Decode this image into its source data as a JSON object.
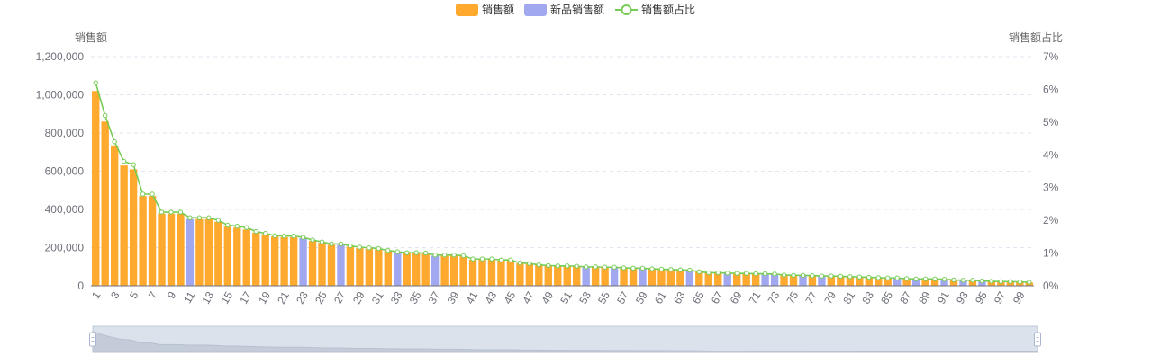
{
  "legend": {
    "items": [
      {
        "label": "销售额",
        "color": "#FFAA2E",
        "kind": "bar"
      },
      {
        "label": "新品销售额",
        "color": "#A2A8F0",
        "kind": "bar"
      },
      {
        "label": "销售额占比",
        "color": "#77CC55",
        "kind": "line"
      }
    ]
  },
  "chart_data": {
    "type": "bar",
    "ylabel_left": "销售额",
    "ylabel_right": "销售额占比",
    "ylim_left": [
      0,
      1200000
    ],
    "ylim_right": [
      0,
      7
    ],
    "left_ticks": [
      "0",
      "200,000",
      "400,000",
      "600,000",
      "800,000",
      "1,000,000",
      "1,200,000"
    ],
    "right_ticks": [
      "0%",
      "1%",
      "2%",
      "3%",
      "4%",
      "5%",
      "6%",
      "7%"
    ],
    "x_tick_labels": [
      "1",
      "3",
      "5",
      "7",
      "9",
      "11",
      "13",
      "15",
      "17",
      "19",
      "21",
      "23",
      "25",
      "27",
      "29",
      "31",
      "33",
      "35",
      "37",
      "39",
      "41",
      "43",
      "45",
      "47",
      "49",
      "51",
      "53",
      "55",
      "57",
      "59",
      "61",
      "63",
      "65",
      "67",
      "69",
      "71",
      "73",
      "75",
      "77",
      "79",
      "81",
      "83",
      "85",
      "87",
      "89",
      "91",
      "93",
      "95",
      "97",
      "99"
    ],
    "categories": [
      "1",
      "2",
      "3",
      "4",
      "5",
      "6",
      "7",
      "8",
      "9",
      "10",
      "11",
      "12",
      "13",
      "14",
      "15",
      "16",
      "17",
      "18",
      "19",
      "20",
      "21",
      "22",
      "23",
      "24",
      "25",
      "26",
      "27",
      "28",
      "29",
      "30",
      "31",
      "32",
      "33",
      "34",
      "35",
      "36",
      "37",
      "38",
      "39",
      "40",
      "41",
      "42",
      "43",
      "44",
      "45",
      "46",
      "47",
      "48",
      "49",
      "50",
      "51",
      "52",
      "53",
      "54",
      "55",
      "56",
      "57",
      "58",
      "59",
      "60",
      "61",
      "62",
      "63",
      "64",
      "65",
      "66",
      "67",
      "68",
      "69",
      "70",
      "71",
      "72",
      "73",
      "74",
      "75",
      "76",
      "77",
      "78",
      "79",
      "80",
      "81",
      "82",
      "83",
      "84",
      "85",
      "86",
      "87",
      "88",
      "89",
      "90",
      "91",
      "92",
      "93",
      "94",
      "95",
      "96",
      "97",
      "98",
      "99",
      "100"
    ],
    "new_product_indices": [
      11,
      23,
      27,
      33,
      37,
      53,
      56,
      59,
      64,
      68,
      72,
      73,
      76,
      78,
      86,
      88,
      91,
      93,
      95
    ],
    "series": [
      {
        "name": "销售额",
        "color": "#FFAA2E",
        "values": [
          1020000,
          860000,
          735000,
          630000,
          610000,
          470000,
          470000,
          378000,
          378000,
          378000,
          350000,
          350000,
          350000,
          335000,
          310000,
          305000,
          295000,
          278000,
          270000,
          258000,
          255000,
          255000,
          250000,
          235000,
          225000,
          215000,
          215000,
          205000,
          198000,
          195000,
          192000,
          182000,
          175000,
          170000,
          170000,
          168000,
          158000,
          158000,
          158000,
          155000,
          138000,
          138000,
          138000,
          132000,
          132000,
          118000,
          115000,
          108000,
          105000,
          102000,
          102000,
          100000,
          98000,
          97000,
          96000,
          95000,
          92000,
          90000,
          90000,
          88000,
          86000,
          84000,
          83000,
          80000,
          73000,
          68000,
          67000,
          65000,
          64000,
          63000,
          62000,
          62000,
          60000,
          55000,
          54000,
          53000,
          52000,
          51000,
          50000,
          48000,
          47000,
          45000,
          43000,
          42000,
          40000,
          40000,
          37000,
          36000,
          35000,
          35000,
          33000,
          30000,
          28000,
          28000,
          25000,
          24000,
          22000,
          21000,
          20000,
          18000
        ]
      },
      {
        "name": "销售额占比",
        "color": "#77CC55",
        "values": [
          6.2,
          5.2,
          4.4,
          3.8,
          3.7,
          2.8,
          2.8,
          2.25,
          2.25,
          2.25,
          2.08,
          2.08,
          2.08,
          2.0,
          1.85,
          1.82,
          1.78,
          1.66,
          1.6,
          1.53,
          1.52,
          1.52,
          1.48,
          1.4,
          1.34,
          1.28,
          1.28,
          1.22,
          1.18,
          1.16,
          1.14,
          1.08,
          1.04,
          1.01,
          1.01,
          1.0,
          0.94,
          0.94,
          0.94,
          0.92,
          0.82,
          0.82,
          0.82,
          0.79,
          0.79,
          0.7,
          0.68,
          0.64,
          0.62,
          0.61,
          0.61,
          0.6,
          0.58,
          0.58,
          0.57,
          0.57,
          0.55,
          0.54,
          0.54,
          0.52,
          0.51,
          0.5,
          0.49,
          0.48,
          0.43,
          0.4,
          0.4,
          0.39,
          0.38,
          0.38,
          0.37,
          0.37,
          0.36,
          0.33,
          0.32,
          0.32,
          0.31,
          0.3,
          0.3,
          0.29,
          0.28,
          0.27,
          0.26,
          0.25,
          0.24,
          0.24,
          0.22,
          0.21,
          0.21,
          0.21,
          0.2,
          0.18,
          0.17,
          0.17,
          0.15,
          0.14,
          0.13,
          0.13,
          0.12,
          0.11
        ]
      }
    ],
    "grid": true,
    "legend_position": "top-center",
    "datazoom": {
      "start": 0,
      "end": 100
    }
  }
}
